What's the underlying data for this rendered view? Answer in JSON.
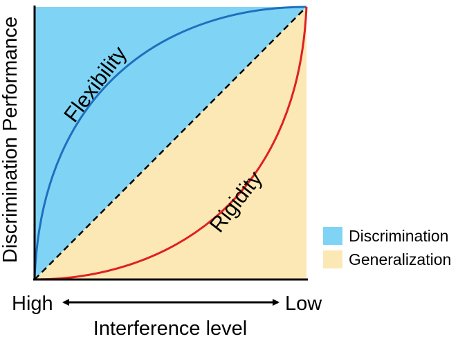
{
  "diagram": {
    "y_axis_label": "Discrimination Performance",
    "x_axis_label": "Interference level",
    "x_left_label": "High",
    "x_right_label": "Low",
    "curve_upper_label": "Flexibility",
    "curve_lower_label": "Rigidity",
    "legend": [
      {
        "label": "Discrimination",
        "color": "#7fd4f5"
      },
      {
        "label": "Generalization",
        "color": "#fbe8b4"
      }
    ],
    "colors": {
      "discrimination_region": "#7fd4f5",
      "generalization_region": "#fbe8b4",
      "flexibility_curve": "#1f6fbf",
      "rigidity_curve": "#e02020",
      "diagonal": "#000000"
    }
  }
}
